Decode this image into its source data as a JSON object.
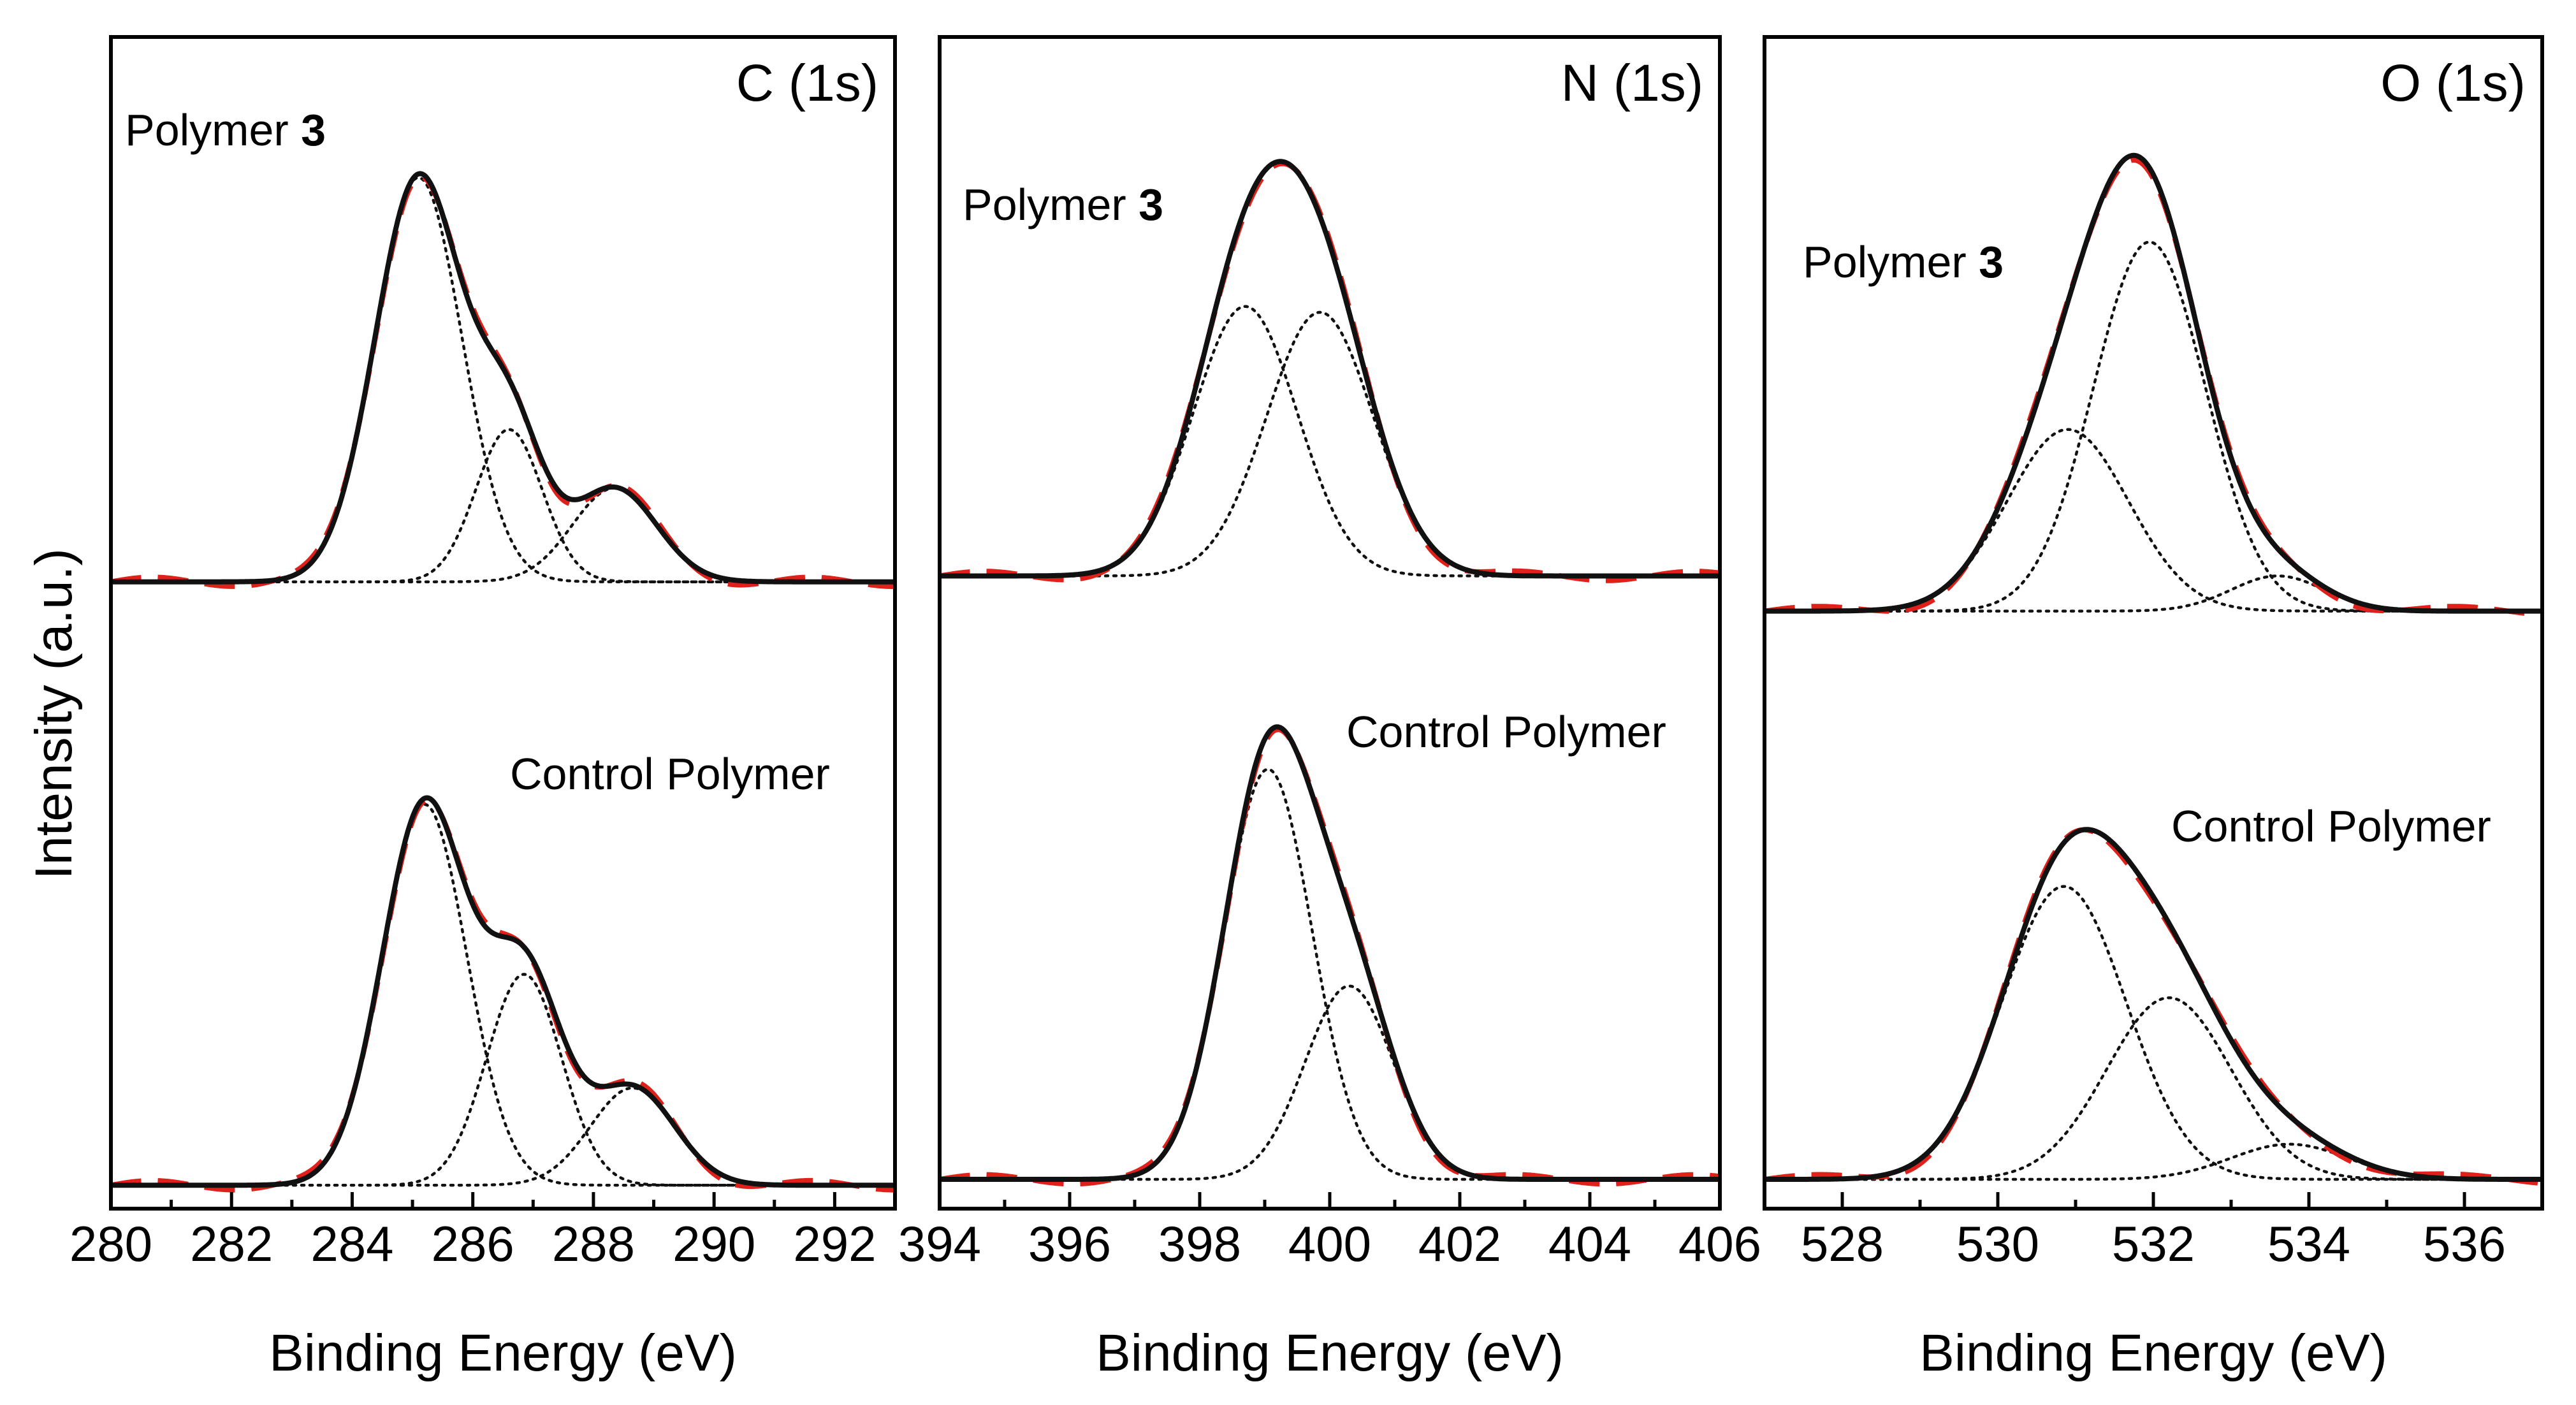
{
  "chart_data": {
    "type": "line",
    "figure": "XPS high-resolution spectra, three panels",
    "y_axis_label": "Intensity (a.u.)",
    "legend_styles": {
      "envelope": "solid black line",
      "fit": "dashed red line",
      "components": "dotted black lines"
    },
    "colors": {
      "envelope": "#111111",
      "fit": "#e0201b",
      "components": "#111111",
      "axes": "#000000"
    },
    "panels": [
      {
        "id": "C",
        "panel_label": "C (1s)",
        "xlabel": "Binding Energy (eV)",
        "xlim": [
          280,
          293
        ],
        "xticks": [
          280,
          282,
          284,
          286,
          288,
          290,
          292
        ],
        "xtick_labels": [
          "280",
          "282",
          "284",
          "286",
          "288",
          "290",
          "292"
        ],
        "ylim": [
          0,
          1
        ],
        "spectra": [
          {
            "name": "Polymer 3",
            "label_prefix": "Polymer ",
            "label_bold": "3",
            "baseline": 0.535,
            "components": [
              {
                "center": 285.1,
                "height": 0.345,
                "sigma": 0.72
              },
              {
                "center": 286.6,
                "height": 0.13,
                "sigma": 0.55
              },
              {
                "center": 288.35,
                "height": 0.08,
                "sigma": 0.7
              }
            ]
          },
          {
            "name": "Control Polymer",
            "label_prefix": "Control Polymer",
            "label_bold": "",
            "baseline": 0.02,
            "components": [
              {
                "center": 285.2,
                "height": 0.325,
                "sigma": 0.7
              },
              {
                "center": 286.85,
                "height": 0.18,
                "sigma": 0.62
              },
              {
                "center": 288.65,
                "height": 0.083,
                "sigma": 0.7
              }
            ]
          }
        ]
      },
      {
        "id": "N",
        "panel_label": "N (1s)",
        "xlabel": "Binding Energy (eV)",
        "xlim": [
          394,
          406
        ],
        "xticks": [
          394,
          396,
          398,
          400,
          402,
          404,
          406
        ],
        "xtick_labels": [
          "394",
          "396",
          "398",
          "400",
          "402",
          "404",
          "406"
        ],
        "ylim": [
          0,
          1
        ],
        "spectra": [
          {
            "name": "Polymer 3",
            "label_prefix": "Polymer ",
            "label_bold": "3",
            "baseline": 0.54,
            "components": [
              {
                "center": 398.7,
                "height": 0.23,
                "sigma": 0.8
              },
              {
                "center": 399.85,
                "height": 0.225,
                "sigma": 0.82
              }
            ]
          },
          {
            "name": "Control Polymer",
            "label_prefix": "Control Polymer",
            "label_bold": "",
            "baseline": 0.025,
            "components": [
              {
                "center": 399.05,
                "height": 0.35,
                "sigma": 0.68
              },
              {
                "center": 400.3,
                "height": 0.165,
                "sigma": 0.68
              }
            ]
          }
        ]
      },
      {
        "id": "O",
        "panel_label": "O (1s)",
        "xlabel": "Binding Energy (eV)",
        "xlim": [
          527,
          537
        ],
        "xticks": [
          528,
          530,
          532,
          534,
          536
        ],
        "xtick_labels": [
          "528",
          "530",
          "532",
          "534",
          "536"
        ],
        "ylim": [
          0,
          1
        ],
        "spectra": [
          {
            "name": "Polymer 3",
            "label_prefix": "Polymer ",
            "label_bold": "3",
            "baseline": 0.51,
            "components": [
              {
                "center": 530.9,
                "height": 0.155,
                "sigma": 0.78
              },
              {
                "center": 531.95,
                "height": 0.315,
                "sigma": 0.72
              },
              {
                "center": 533.6,
                "height": 0.03,
                "sigma": 0.6
              }
            ]
          },
          {
            "name": "Control Polymer",
            "label_prefix": "Control Polymer",
            "label_bold": "",
            "baseline": 0.025,
            "components": [
              {
                "center": 530.85,
                "height": 0.25,
                "sigma": 0.8
              },
              {
                "center": 532.2,
                "height": 0.155,
                "sigma": 0.8
              },
              {
                "center": 533.75,
                "height": 0.03,
                "sigma": 0.75
              }
            ]
          }
        ]
      }
    ]
  }
}
